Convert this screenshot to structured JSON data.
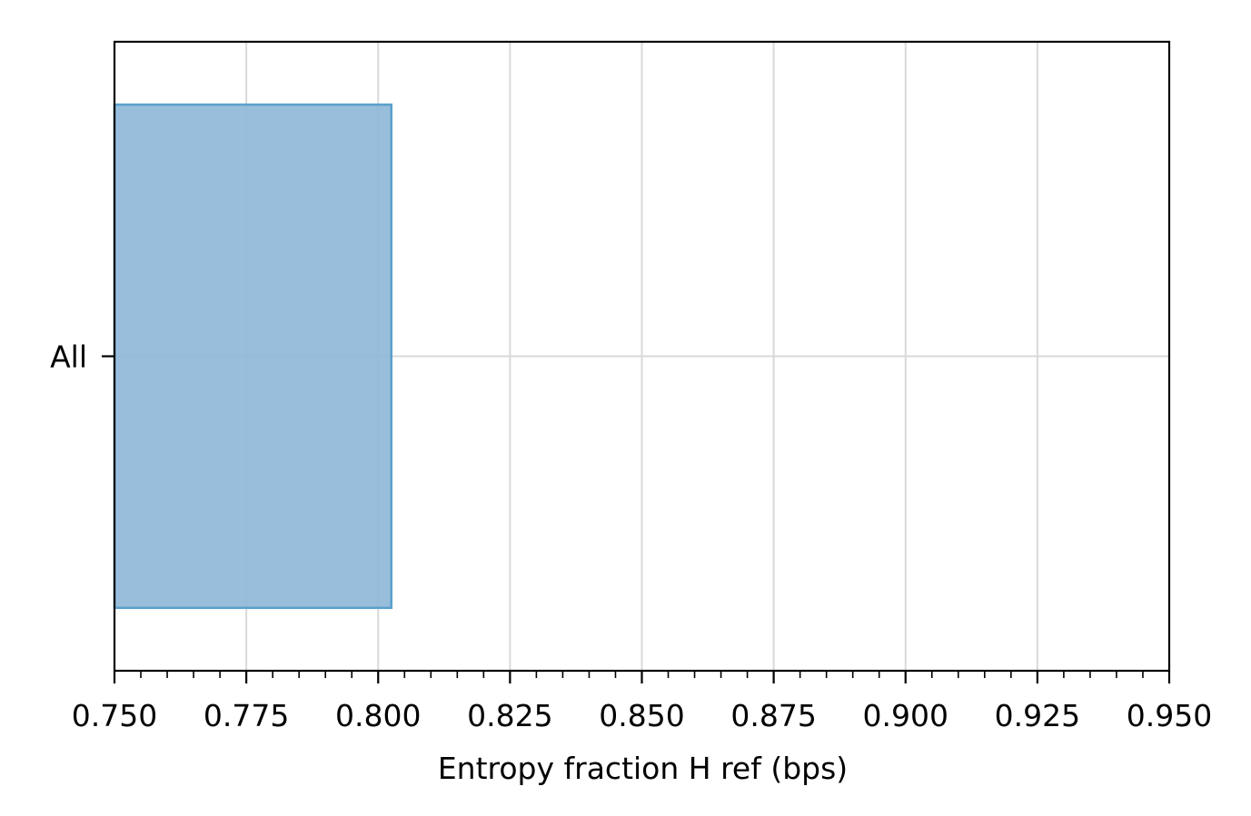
{
  "chart_data": {
    "type": "bar",
    "orientation": "horizontal",
    "categories": [
      "All"
    ],
    "values": [
      0.8025
    ],
    "title": "",
    "xlabel": "Entropy fraction H ref (bps)",
    "ylabel": "",
    "xlim": [
      0.75,
      0.95
    ],
    "xticks": [
      "0.750",
      "0.775",
      "0.800",
      "0.825",
      "0.850",
      "0.875",
      "0.900",
      "0.925",
      "0.950"
    ],
    "grid": true,
    "bar_color": "#8fb9d8",
    "bar_edge_color": "#5b9fcc",
    "grid_color": "#d9d9d9"
  }
}
